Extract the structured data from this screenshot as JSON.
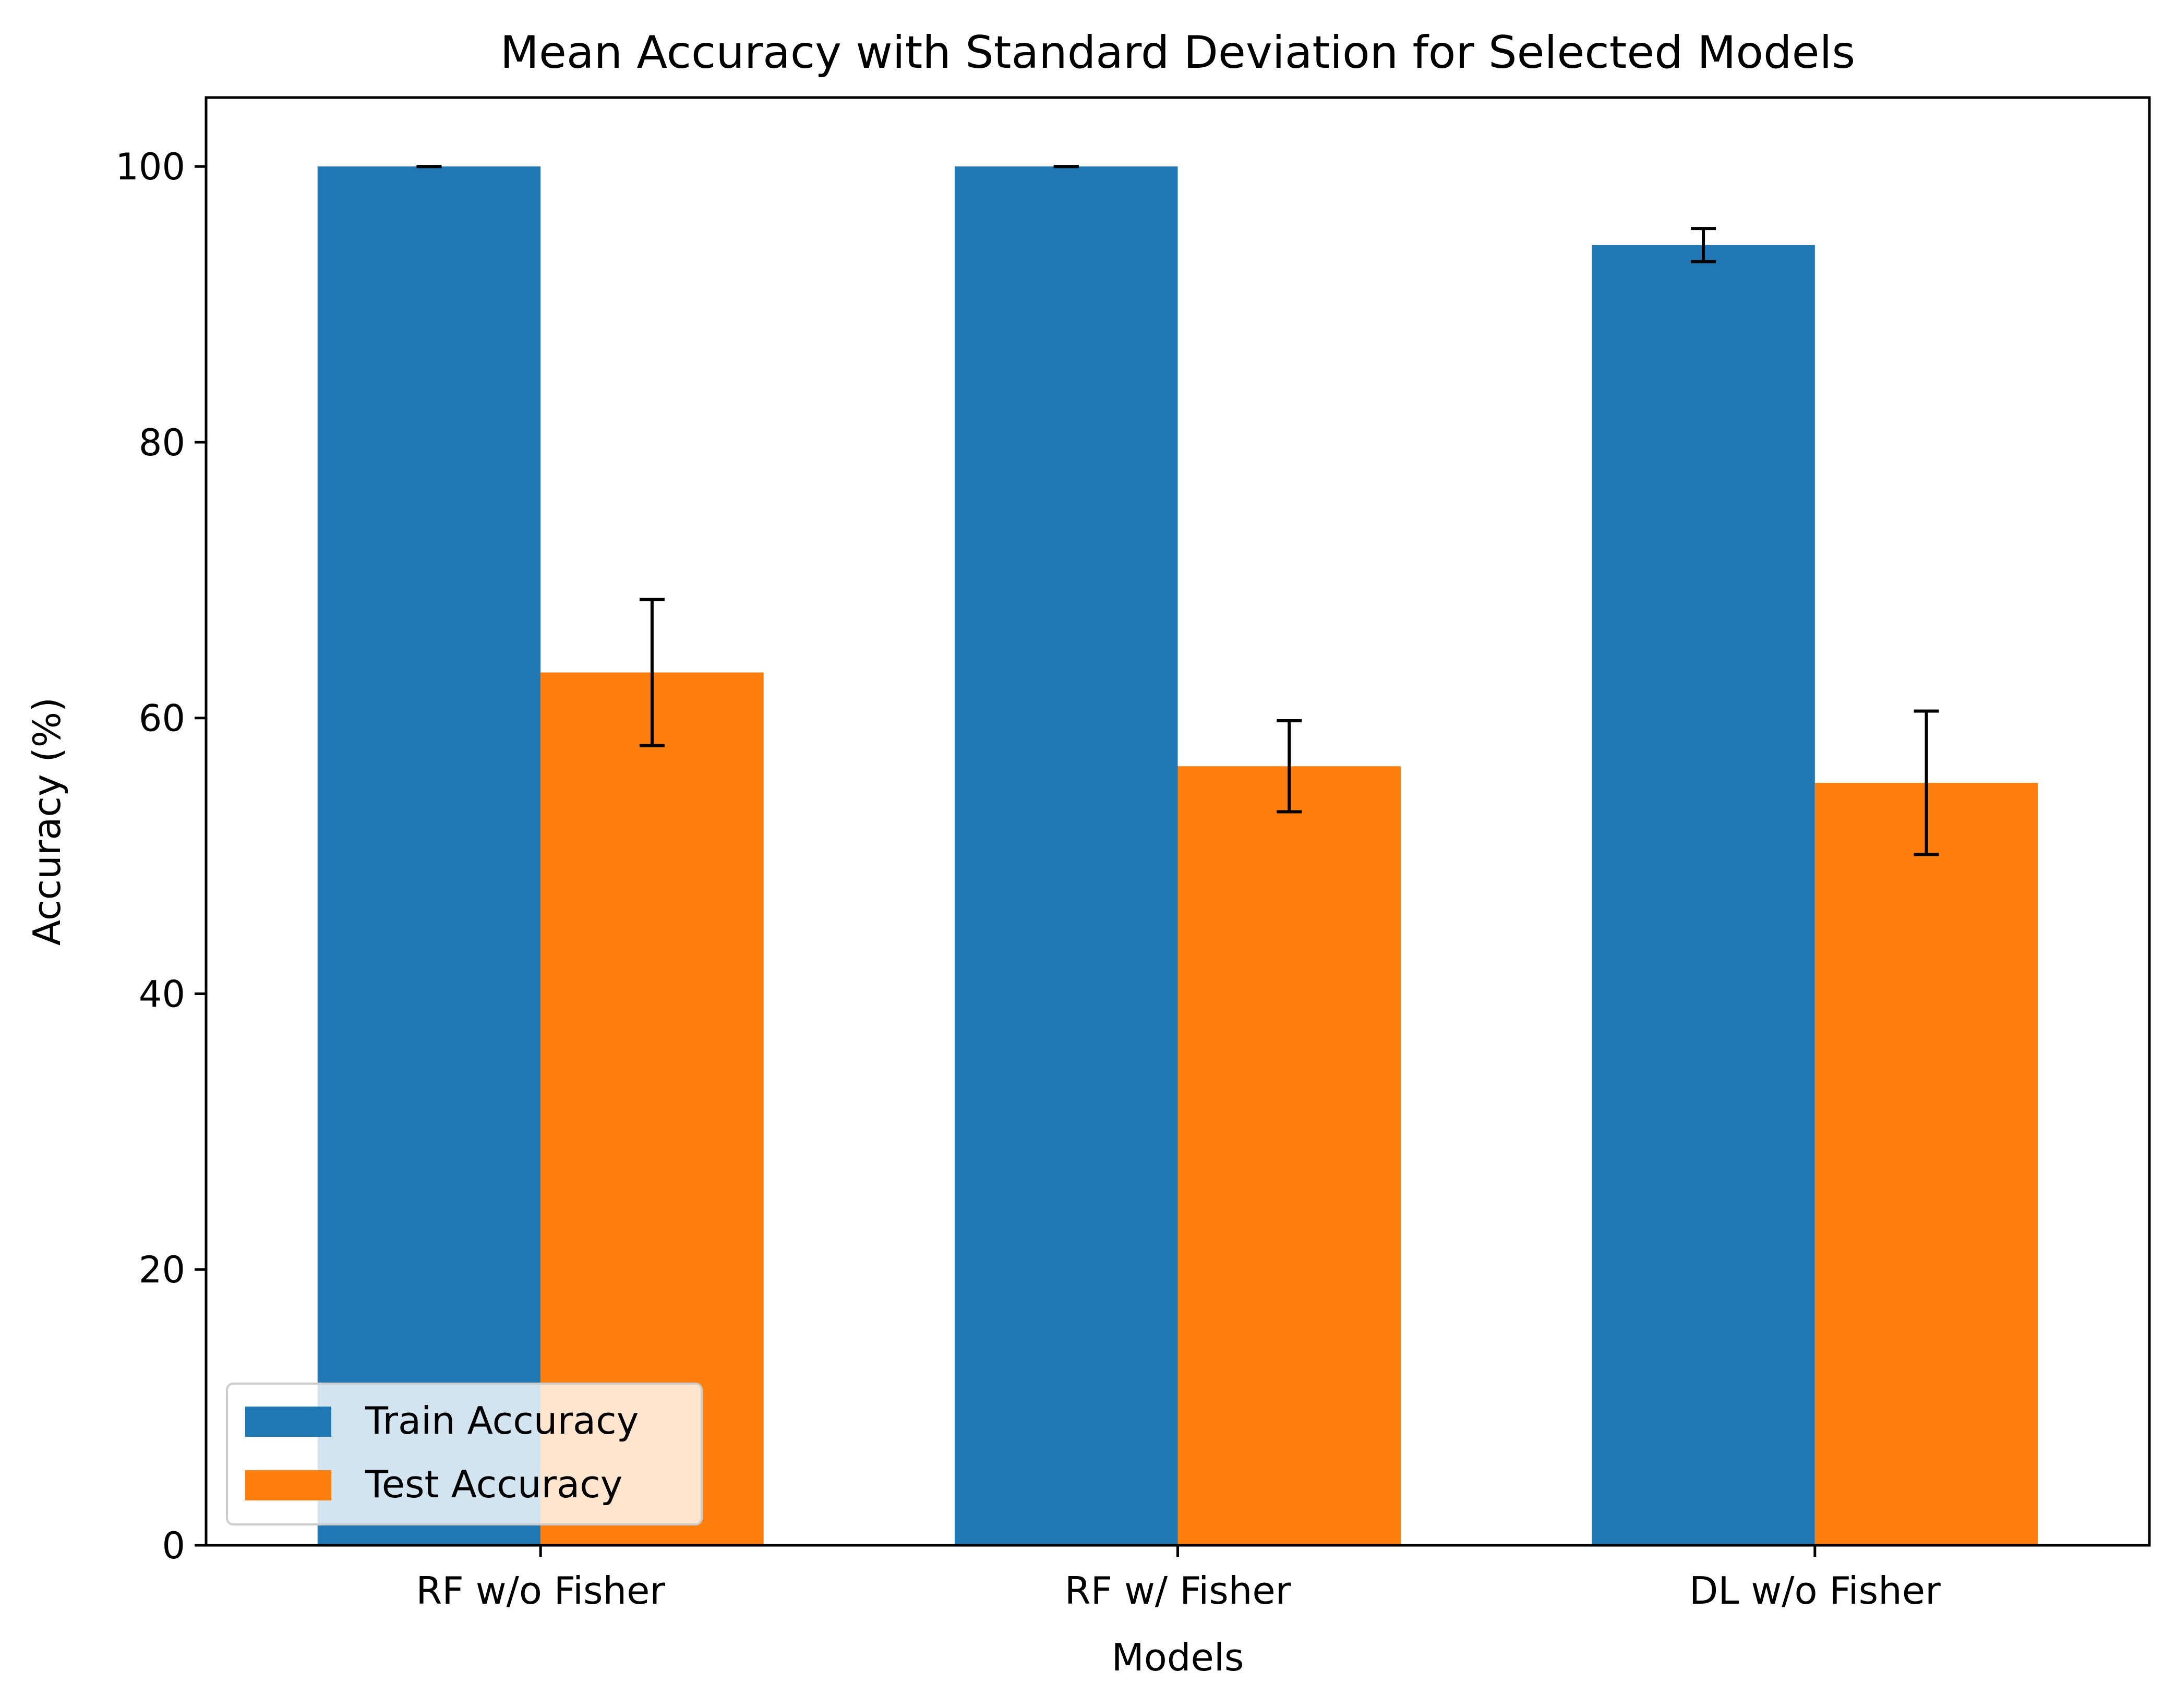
{
  "chart_data": {
    "type": "bar",
    "title": "Mean Accuracy with Standard Deviation for Selected Models",
    "xlabel": "Models",
    "ylabel": "Accuracy (%)",
    "categories": [
      "RF w/o Fisher",
      "RF w/ Fisher",
      "DL w/o Fisher"
    ],
    "ylim": [
      0,
      105
    ],
    "yticks": [
      0,
      20,
      40,
      60,
      80,
      100
    ],
    "grid": false,
    "legend_position": "lower-left",
    "series": [
      {
        "name": "Train Accuracy",
        "color": "#1f77b4",
        "values": [
          100.0,
          100.0,
          94.3
        ],
        "errors": [
          0.0,
          0.0,
          1.2
        ]
      },
      {
        "name": "Test Accuracy",
        "color": "#ff7f0e",
        "values": [
          63.3,
          56.5,
          55.3
        ],
        "errors": [
          5.3,
          3.3,
          5.2
        ]
      }
    ]
  }
}
